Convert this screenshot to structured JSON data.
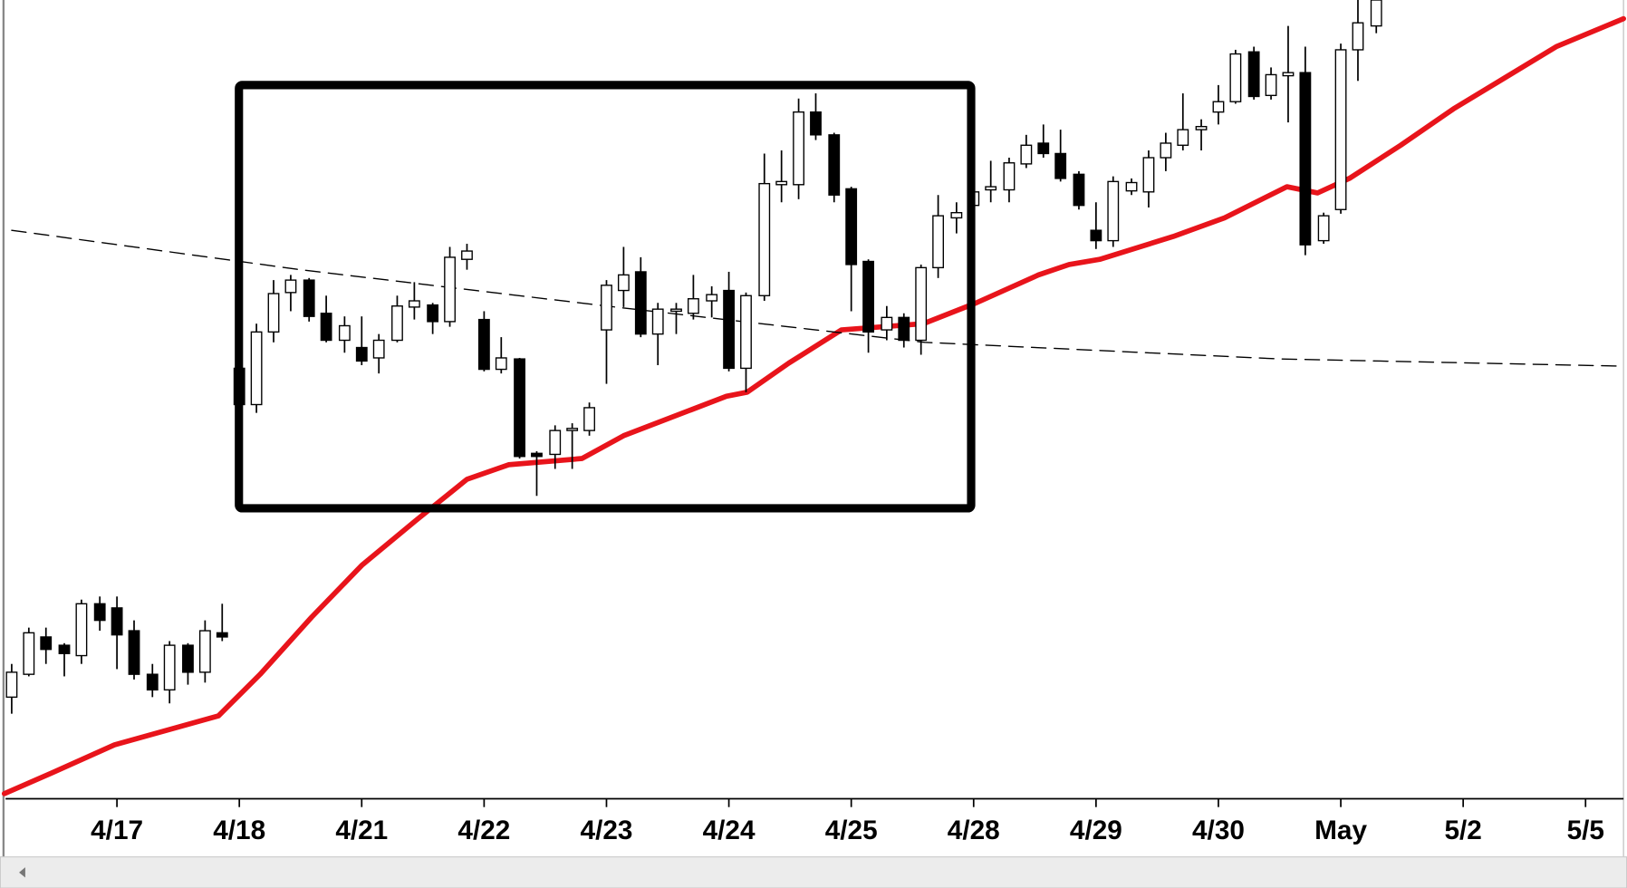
{
  "chart_data": {
    "type": "candlestick",
    "x": [
      -0.86,
      -0.72,
      -0.58,
      -0.43,
      -0.29,
      -0.14,
      0,
      0.14,
      0.29,
      0.43,
      0.58,
      0.72,
      0.86,
      1.0,
      1.14,
      1.28,
      1.42,
      1.57,
      1.71,
      1.86,
      2.0,
      2.14,
      2.29,
      2.43,
      2.58,
      2.72,
      2.86,
      3.0,
      3.14,
      3.29,
      3.43,
      3.58,
      3.72,
      3.86,
      4.0,
      4.14,
      4.28,
      4.42,
      4.57,
      4.71,
      4.86,
      5.0,
      5.14,
      5.29,
      5.43,
      5.57,
      5.71,
      5.86,
      6.0,
      6.14,
      6.29,
      6.43,
      6.57,
      6.71,
      6.86,
      7.0,
      7.14,
      7.29,
      7.43,
      7.57,
      7.71,
      7.86,
      8.0,
      8.14,
      8.29,
      8.43,
      8.57,
      8.71,
      8.86,
      9.0,
      9.14,
      9.29,
      9.43,
      9.57,
      9.71,
      9.86,
      10.0,
      10.14,
      10.29
    ],
    "open": [
      98,
      120,
      156,
      148,
      138,
      188,
      184,
      162,
      120,
      105,
      148,
      122,
      160,
      415,
      380,
      450,
      488,
      500,
      468,
      442,
      435,
      425,
      442,
      474,
      476,
      460,
      520,
      462,
      414,
      424,
      333,
      332,
      355,
      355,
      452,
      490,
      508,
      448,
      470,
      468,
      480,
      490,
      415,
      485,
      592,
      592,
      662,
      640,
      588,
      518,
      452,
      464,
      442,
      512,
      560,
      572,
      587,
      587,
      612,
      632,
      622,
      602,
      548,
      538,
      586,
      585,
      618,
      630,
      645,
      662,
      672,
      720,
      678,
      697,
      700,
      538,
      568,
      722,
      745
    ],
    "high": [
      130,
      165,
      165,
      150,
      192,
      195,
      195,
      172,
      130,
      152,
      150,
      172,
      188,
      415,
      458,
      500,
      505,
      502,
      485,
      465,
      465,
      448,
      485,
      498,
      478,
      532,
      535,
      470,
      445,
      425,
      335,
      360,
      362,
      382,
      500,
      532,
      522,
      478,
      478,
      505,
      494,
      508,
      488,
      622,
      625,
      675,
      680,
      642,
      590,
      520,
      475,
      468,
      515,
      582,
      575,
      590,
      615,
      618,
      640,
      650,
      645,
      605,
      575,
      600,
      598,
      625,
      642,
      680,
      655,
      688,
      722,
      725,
      705,
      745,
      725,
      565,
      728,
      770,
      770
    ],
    "low": [
      82,
      118,
      130,
      118,
      130,
      162,
      125,
      115,
      98,
      92,
      110,
      112,
      152,
      378,
      372,
      440,
      470,
      460,
      440,
      430,
      418,
      410,
      440,
      462,
      448,
      455,
      510,
      412,
      410,
      328,
      292,
      318,
      318,
      350,
      400,
      474,
      445,
      418,
      448,
      462,
      464,
      412,
      392,
      480,
      575,
      578,
      635,
      575,
      470,
      430,
      442,
      435,
      428,
      502,
      545,
      565,
      575,
      575,
      608,
      618,
      595,
      568,
      530,
      532,
      582,
      570,
      605,
      625,
      625,
      650,
      670,
      674,
      674,
      652,
      524,
      535,
      564,
      692,
      738
    ],
    "close": [
      122,
      160,
      144,
      140,
      188,
      172,
      158,
      120,
      105,
      148,
      122,
      162,
      156,
      380,
      450,
      487,
      500,
      465,
      442,
      456,
      422,
      442,
      475,
      480,
      460,
      522,
      528,
      414,
      425,
      330,
      330,
      355,
      357,
      377,
      495,
      505,
      448,
      472,
      472,
      482,
      486,
      415,
      485,
      593,
      595,
      662,
      640,
      582,
      515,
      450,
      464,
      442,
      512,
      562,
      565,
      585,
      590,
      613,
      630,
      622,
      598,
      572,
      538,
      595,
      594,
      618,
      632,
      645,
      648,
      672,
      718,
      677,
      698,
      700,
      534,
      562,
      722,
      748,
      770
    ],
    "up_color": "#ffffff",
    "down_color": "#000000",
    "lines": [
      {
        "color": "#e8141b",
        "dash": false,
        "x": [
          -0.92,
          -0.53,
          -0.02,
          0.83,
          1.17,
          1.59,
          2.0,
          2.44,
          2.86,
          3.2,
          3.8,
          4.14,
          4.98,
          5.15,
          5.49,
          5.92,
          6.59,
          7.02,
          7.53,
          7.78,
          8.03,
          8.63,
          9.05,
          9.56,
          9.81,
          10.07,
          10.49,
          10.92,
          11.34,
          11.76,
          12.31
        ],
        "values": [
          5,
          25,
          52,
          80,
          120,
          175,
          225,
          268,
          308,
          322,
          328,
          350,
          388,
          392,
          420,
          452,
          458,
          478,
          505,
          515,
          520,
          542,
          560,
          590,
          584,
          598,
          630,
          665,
          695,
          725,
          752
        ]
      },
      {
        "color": "#000000",
        "dash": true,
        "x": [
          -0.86,
          1.5,
          4.0,
          6.6,
          9.5,
          12.31
        ],
        "values": [
          548,
          510,
          475,
          440,
          424,
          417
        ]
      }
    ],
    "xlim": [
      -0.91,
      12.31
    ],
    "ylim": [
      0,
      770
    ],
    "xticks": [
      {
        "value": 0,
        "label": "4/17"
      },
      {
        "value": 1,
        "label": "4/18"
      },
      {
        "value": 2,
        "label": "4/21"
      },
      {
        "value": 3,
        "label": "4/22"
      },
      {
        "value": 4,
        "label": "4/23"
      },
      {
        "value": 5,
        "label": "4/24"
      },
      {
        "value": 6,
        "label": "4/25"
      },
      {
        "value": 7,
        "label": "4/28"
      },
      {
        "value": 8,
        "label": "4/29"
      },
      {
        "value": 9,
        "label": "4/30"
      },
      {
        "value": 10,
        "label": "May"
      },
      {
        "value": 11,
        "label": "5/2"
      },
      {
        "value": 12,
        "label": "5/5"
      }
    ]
  }
}
